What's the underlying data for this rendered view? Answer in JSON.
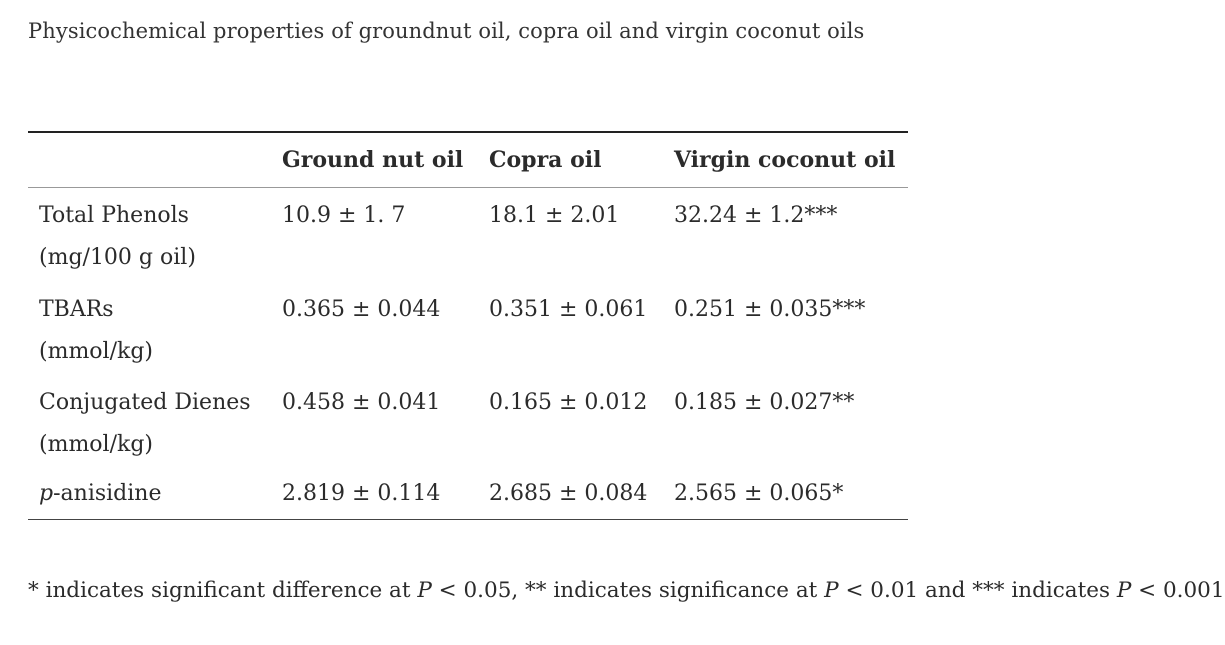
{
  "caption": "Physicochemical properties of groundnut oil, copra oil and virgin coconut oils",
  "table": {
    "headers": [
      "",
      "Ground nut oil",
      "Copra oil",
      "Virgin coconut oil"
    ],
    "rows": [
      {
        "label_line1": "Total Phenols",
        "label_line2": "(mg/100 g oil)",
        "ground_nut": "10.9 ± 1. 7",
        "copra": "18.1 ± 2.01",
        "virgin_coconut": "32.24 ± 1.2***"
      },
      {
        "label_line1": "TBARs",
        "label_line2": "(mmol/kg)",
        "ground_nut": "0.365 ± 0.044",
        "copra": "0.351 ± 0.061",
        "virgin_coconut": "0.251 ± 0.035***"
      },
      {
        "label_line1": "Conjugated Dienes",
        "label_line2": "(mmol/kg)",
        "ground_nut": "0.458 ± 0.041",
        "copra": "0.165 ± 0.012",
        "virgin_coconut": "0.185 ± 0.027**"
      },
      {
        "label_prefix": "p",
        "label_rest": "-anisidine",
        "ground_nut": "2.819 ± 0.114",
        "copra": "2.685 ± 0.084",
        "virgin_coconut": "2.565 ± 0.065*"
      }
    ]
  },
  "footnote": {
    "part1": "* indicates significant difference at ",
    "p1": "P",
    "part2": " < 0.05, ** indicates significance at ",
    "p2": "P",
    "part3": " < 0.01 and *** indicates ",
    "p3": "P",
    "part4": " < 0.001"
  }
}
